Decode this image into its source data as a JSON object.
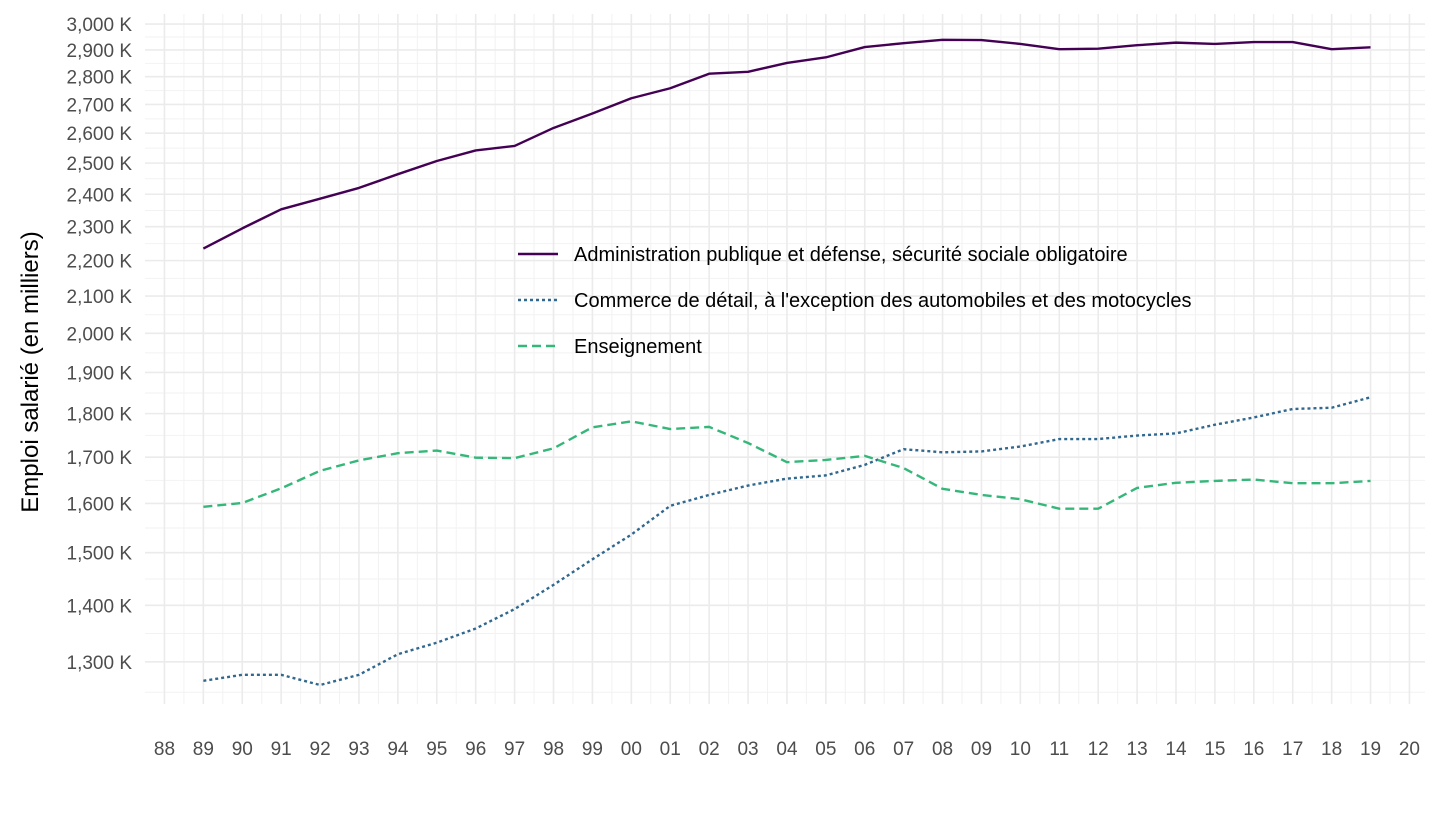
{
  "chart_data": {
    "type": "line",
    "title": "",
    "xlabel": "",
    "ylabel": "Emploi salarié (en milliers)",
    "y_scale": "log",
    "ylim": [
      1230,
      3040
    ],
    "xlim": [
      1987.5,
      2020.4
    ],
    "grid": true,
    "legend_position": "center-right",
    "y_ticks": [
      {
        "value": 1300,
        "label": "1,300 K"
      },
      {
        "value": 1400,
        "label": "1,400 K"
      },
      {
        "value": 1500,
        "label": "1,500 K"
      },
      {
        "value": 1600,
        "label": "1,600 K"
      },
      {
        "value": 1700,
        "label": "1,700 K"
      },
      {
        "value": 1800,
        "label": "1,800 K"
      },
      {
        "value": 1900,
        "label": "1,900 K"
      },
      {
        "value": 2000,
        "label": "2,000 K"
      },
      {
        "value": 2100,
        "label": "2,100 K"
      },
      {
        "value": 2200,
        "label": "2,200 K"
      },
      {
        "value": 2300,
        "label": "2,300 K"
      },
      {
        "value": 2400,
        "label": "2,400 K"
      },
      {
        "value": 2500,
        "label": "2,500 K"
      },
      {
        "value": 2600,
        "label": "2,600 K"
      },
      {
        "value": 2700,
        "label": "2,700 K"
      },
      {
        "value": 2800,
        "label": "2,800 K"
      },
      {
        "value": 2900,
        "label": "2,900 K"
      },
      {
        "value": 3000,
        "label": "3,000 K"
      }
    ],
    "x_ticks": [
      {
        "value": 1988,
        "label": "88"
      },
      {
        "value": 1989,
        "label": "89"
      },
      {
        "value": 1990,
        "label": "90"
      },
      {
        "value": 1991,
        "label": "91"
      },
      {
        "value": 1992,
        "label": "92"
      },
      {
        "value": 1993,
        "label": "93"
      },
      {
        "value": 1994,
        "label": "94"
      },
      {
        "value": 1995,
        "label": "95"
      },
      {
        "value": 1996,
        "label": "96"
      },
      {
        "value": 1997,
        "label": "97"
      },
      {
        "value": 1998,
        "label": "98"
      },
      {
        "value": 1999,
        "label": "99"
      },
      {
        "value": 2000,
        "label": "00"
      },
      {
        "value": 2001,
        "label": "01"
      },
      {
        "value": 2002,
        "label": "02"
      },
      {
        "value": 2003,
        "label": "03"
      },
      {
        "value": 2004,
        "label": "04"
      },
      {
        "value": 2005,
        "label": "05"
      },
      {
        "value": 2006,
        "label": "06"
      },
      {
        "value": 2007,
        "label": "07"
      },
      {
        "value": 2008,
        "label": "08"
      },
      {
        "value": 2009,
        "label": "09"
      },
      {
        "value": 2010,
        "label": "10"
      },
      {
        "value": 2011,
        "label": "11"
      },
      {
        "value": 2012,
        "label": "12"
      },
      {
        "value": 2013,
        "label": "13"
      },
      {
        "value": 2014,
        "label": "14"
      },
      {
        "value": 2015,
        "label": "15"
      },
      {
        "value": 2016,
        "label": "16"
      },
      {
        "value": 2017,
        "label": "17"
      },
      {
        "value": 2018,
        "label": "18"
      },
      {
        "value": 2019,
        "label": "19"
      },
      {
        "value": 2020,
        "label": "20"
      }
    ],
    "x": [
      1989,
      1990,
      1991,
      1992,
      1993,
      1994,
      1995,
      1996,
      1997,
      1998,
      1999,
      2000,
      2001,
      2002,
      2003,
      2004,
      2005,
      2006,
      2007,
      2008,
      2009,
      2010,
      2011,
      2012,
      2013,
      2014,
      2015,
      2016,
      2017,
      2018,
      2019
    ],
    "series": [
      {
        "name": "Administration publique et défense, sécurité sociale obligatoire",
        "color": "#440154",
        "dash": "solid",
        "values": [
          2235,
          2295,
          2353,
          2386,
          2420,
          2464,
          2507,
          2542,
          2557,
          2618,
          2668,
          2722,
          2758,
          2811,
          2818,
          2851,
          2872,
          2911,
          2926,
          2939,
          2938,
          2923,
          2903,
          2905,
          2918,
          2928,
          2923,
          2930,
          2930,
          2903,
          2910
        ]
      },
      {
        "name": "Commerce de détail, à l'exception des automobiles et des motocycles",
        "color": "#31688e",
        "dash": "dotted",
        "values": [
          1268,
          1278,
          1278,
          1261,
          1278,
          1313,
          1333,
          1358,
          1393,
          1438,
          1487,
          1536,
          1595,
          1618,
          1638,
          1653,
          1660,
          1683,
          1718,
          1711,
          1713,
          1724,
          1741,
          1741,
          1749,
          1754,
          1774,
          1791,
          1811,
          1814,
          1839
        ]
      },
      {
        "name": "Enseignement",
        "color": "#35b779",
        "dash": "dashed",
        "values": [
          1593,
          1601,
          1632,
          1670,
          1693,
          1709,
          1715,
          1699,
          1698,
          1720,
          1768,
          1782,
          1764,
          1769,
          1732,
          1689,
          1694,
          1703,
          1676,
          1631,
          1618,
          1609,
          1589,
          1589,
          1633,
          1644,
          1648,
          1651,
          1643,
          1643,
          1648
        ]
      }
    ]
  }
}
